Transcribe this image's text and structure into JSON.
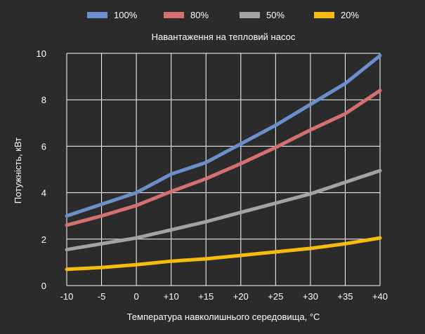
{
  "chart_data": {
    "type": "line",
    "title": "",
    "subtitle": "Навантаження на тепловий насос",
    "xlabel": "Температура навколишнього середовища, °C",
    "ylabel": "Потужність, кВт",
    "x": [
      -10,
      -5,
      0,
      10,
      15,
      20,
      25,
      30,
      35,
      40
    ],
    "x_tick_labels": [
      "-10",
      "-5",
      "0",
      "+10",
      "+15",
      "+20",
      "+25",
      "+30",
      "+35",
      "+40"
    ],
    "y_ticks": [
      0,
      2,
      4,
      6,
      8,
      10
    ],
    "ylim": [
      0,
      10
    ],
    "grid": true,
    "legend_position": "top",
    "series": [
      {
        "name": "100%",
        "color": "#6a8fcb",
        "values": [
          3.0,
          3.5,
          4.0,
          4.8,
          5.3,
          6.1,
          6.9,
          7.8,
          8.7,
          9.9
        ]
      },
      {
        "name": "80%",
        "color": "#d47070",
        "values": [
          2.6,
          3.0,
          3.45,
          4.05,
          4.6,
          5.25,
          5.95,
          6.7,
          7.4,
          8.4
        ]
      },
      {
        "name": "50%",
        "color": "#a3a3a3",
        "values": [
          1.55,
          1.8,
          2.05,
          2.4,
          2.75,
          3.15,
          3.55,
          3.95,
          4.45,
          4.95
        ]
      },
      {
        "name": "20%",
        "color": "#f5bc0f",
        "values": [
          0.7,
          0.78,
          0.9,
          1.05,
          1.15,
          1.3,
          1.45,
          1.6,
          1.8,
          2.05
        ]
      }
    ]
  }
}
